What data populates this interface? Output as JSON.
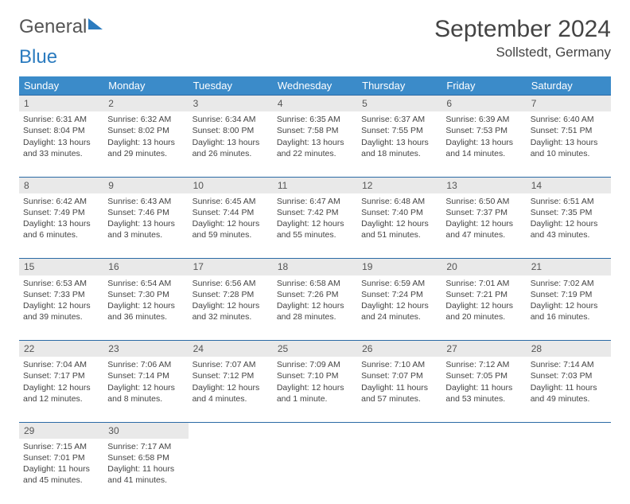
{
  "logo": {
    "part1": "General",
    "part2": "Blue"
  },
  "title": "September 2024",
  "location": "Sollstedt, Germany",
  "header_bg": "#3b8bc9",
  "border_color": "#2b6aa5",
  "daynum_bg": "#e9e9e9",
  "text_color": "#444444",
  "weekdays": [
    "Sunday",
    "Monday",
    "Tuesday",
    "Wednesday",
    "Thursday",
    "Friday",
    "Saturday"
  ],
  "weeks": [
    [
      {
        "n": "1",
        "sr": "6:31 AM",
        "ss": "8:04 PM",
        "dl": "13 hours and 33 minutes."
      },
      {
        "n": "2",
        "sr": "6:32 AM",
        "ss": "8:02 PM",
        "dl": "13 hours and 29 minutes."
      },
      {
        "n": "3",
        "sr": "6:34 AM",
        "ss": "8:00 PM",
        "dl": "13 hours and 26 minutes."
      },
      {
        "n": "4",
        "sr": "6:35 AM",
        "ss": "7:58 PM",
        "dl": "13 hours and 22 minutes."
      },
      {
        "n": "5",
        "sr": "6:37 AM",
        "ss": "7:55 PM",
        "dl": "13 hours and 18 minutes."
      },
      {
        "n": "6",
        "sr": "6:39 AM",
        "ss": "7:53 PM",
        "dl": "13 hours and 14 minutes."
      },
      {
        "n": "7",
        "sr": "6:40 AM",
        "ss": "7:51 PM",
        "dl": "13 hours and 10 minutes."
      }
    ],
    [
      {
        "n": "8",
        "sr": "6:42 AM",
        "ss": "7:49 PM",
        "dl": "13 hours and 6 minutes."
      },
      {
        "n": "9",
        "sr": "6:43 AM",
        "ss": "7:46 PM",
        "dl": "13 hours and 3 minutes."
      },
      {
        "n": "10",
        "sr": "6:45 AM",
        "ss": "7:44 PM",
        "dl": "12 hours and 59 minutes."
      },
      {
        "n": "11",
        "sr": "6:47 AM",
        "ss": "7:42 PM",
        "dl": "12 hours and 55 minutes."
      },
      {
        "n": "12",
        "sr": "6:48 AM",
        "ss": "7:40 PM",
        "dl": "12 hours and 51 minutes."
      },
      {
        "n": "13",
        "sr": "6:50 AM",
        "ss": "7:37 PM",
        "dl": "12 hours and 47 minutes."
      },
      {
        "n": "14",
        "sr": "6:51 AM",
        "ss": "7:35 PM",
        "dl": "12 hours and 43 minutes."
      }
    ],
    [
      {
        "n": "15",
        "sr": "6:53 AM",
        "ss": "7:33 PM",
        "dl": "12 hours and 39 minutes."
      },
      {
        "n": "16",
        "sr": "6:54 AM",
        "ss": "7:30 PM",
        "dl": "12 hours and 36 minutes."
      },
      {
        "n": "17",
        "sr": "6:56 AM",
        "ss": "7:28 PM",
        "dl": "12 hours and 32 minutes."
      },
      {
        "n": "18",
        "sr": "6:58 AM",
        "ss": "7:26 PM",
        "dl": "12 hours and 28 minutes."
      },
      {
        "n": "19",
        "sr": "6:59 AM",
        "ss": "7:24 PM",
        "dl": "12 hours and 24 minutes."
      },
      {
        "n": "20",
        "sr": "7:01 AM",
        "ss": "7:21 PM",
        "dl": "12 hours and 20 minutes."
      },
      {
        "n": "21",
        "sr": "7:02 AM",
        "ss": "7:19 PM",
        "dl": "12 hours and 16 minutes."
      }
    ],
    [
      {
        "n": "22",
        "sr": "7:04 AM",
        "ss": "7:17 PM",
        "dl": "12 hours and 12 minutes."
      },
      {
        "n": "23",
        "sr": "7:06 AM",
        "ss": "7:14 PM",
        "dl": "12 hours and 8 minutes."
      },
      {
        "n": "24",
        "sr": "7:07 AM",
        "ss": "7:12 PM",
        "dl": "12 hours and 4 minutes."
      },
      {
        "n": "25",
        "sr": "7:09 AM",
        "ss": "7:10 PM",
        "dl": "12 hours and 1 minute."
      },
      {
        "n": "26",
        "sr": "7:10 AM",
        "ss": "7:07 PM",
        "dl": "11 hours and 57 minutes."
      },
      {
        "n": "27",
        "sr": "7:12 AM",
        "ss": "7:05 PM",
        "dl": "11 hours and 53 minutes."
      },
      {
        "n": "28",
        "sr": "7:14 AM",
        "ss": "7:03 PM",
        "dl": "11 hours and 49 minutes."
      }
    ],
    [
      {
        "n": "29",
        "sr": "7:15 AM",
        "ss": "7:01 PM",
        "dl": "11 hours and 45 minutes."
      },
      {
        "n": "30",
        "sr": "7:17 AM",
        "ss": "6:58 PM",
        "dl": "11 hours and 41 minutes."
      },
      null,
      null,
      null,
      null,
      null
    ]
  ],
  "labels": {
    "sunrise": "Sunrise: ",
    "sunset": "Sunset: ",
    "daylight": "Daylight: "
  }
}
